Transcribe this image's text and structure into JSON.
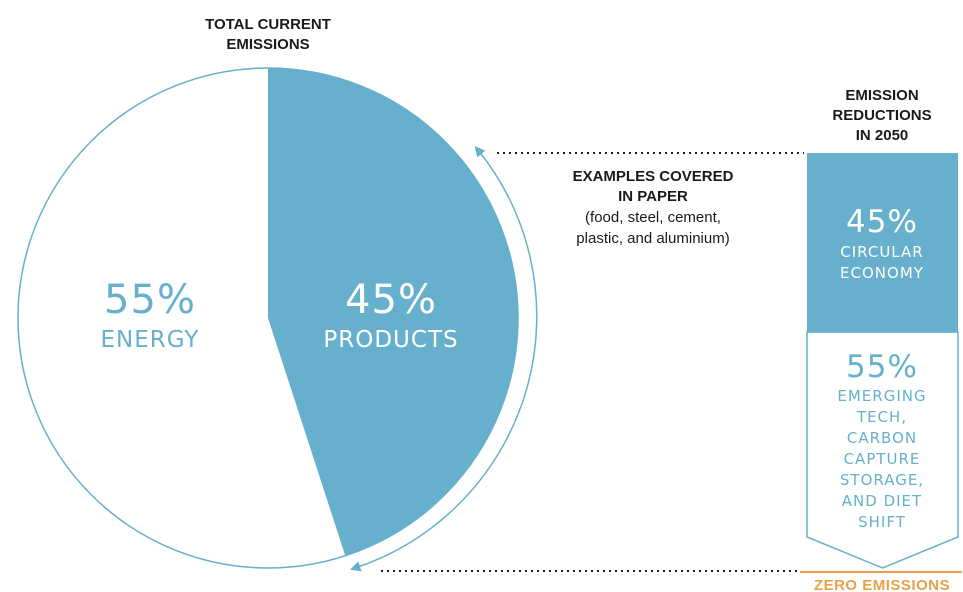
{
  "colors": {
    "blue": "#67b0cd",
    "white": "#ffffff",
    "orange": "#e8a14a",
    "dark": "#1a1a1a"
  },
  "pie": {
    "title_line1": "TOTAL CURRENT",
    "title_line2": "EMISSIONS",
    "energy_share": 55,
    "products_share": 45,
    "energy_percent": "55%",
    "energy_label": "ENERGY",
    "products_percent": "45%",
    "products_label": "PRODUCTS"
  },
  "examples": {
    "line1": "EXAMPLES COVERED",
    "line2": "IN PAPER",
    "line3": "(food, steel, cement,",
    "line4": "plastic, and aluminium)"
  },
  "reductions": {
    "title_line1": "EMISSION",
    "title_line2": "REDUCTIONS",
    "title_line3": "IN 2050",
    "circular_share": 45,
    "circular_percent": "45%",
    "circular_line1": "CIRCULAR",
    "circular_line2": "ECONOMY",
    "emerging_percent": "55%",
    "emerging_line1": "EMERGING",
    "emerging_line2": "TECH,",
    "emerging_line3": "CARBON",
    "emerging_line4": "CAPTURE",
    "emerging_line5": "STORAGE,",
    "emerging_line6": "AND DIET",
    "emerging_line7": "SHIFT"
  },
  "footer": {
    "zero_label": "ZERO EMISSIONS"
  }
}
